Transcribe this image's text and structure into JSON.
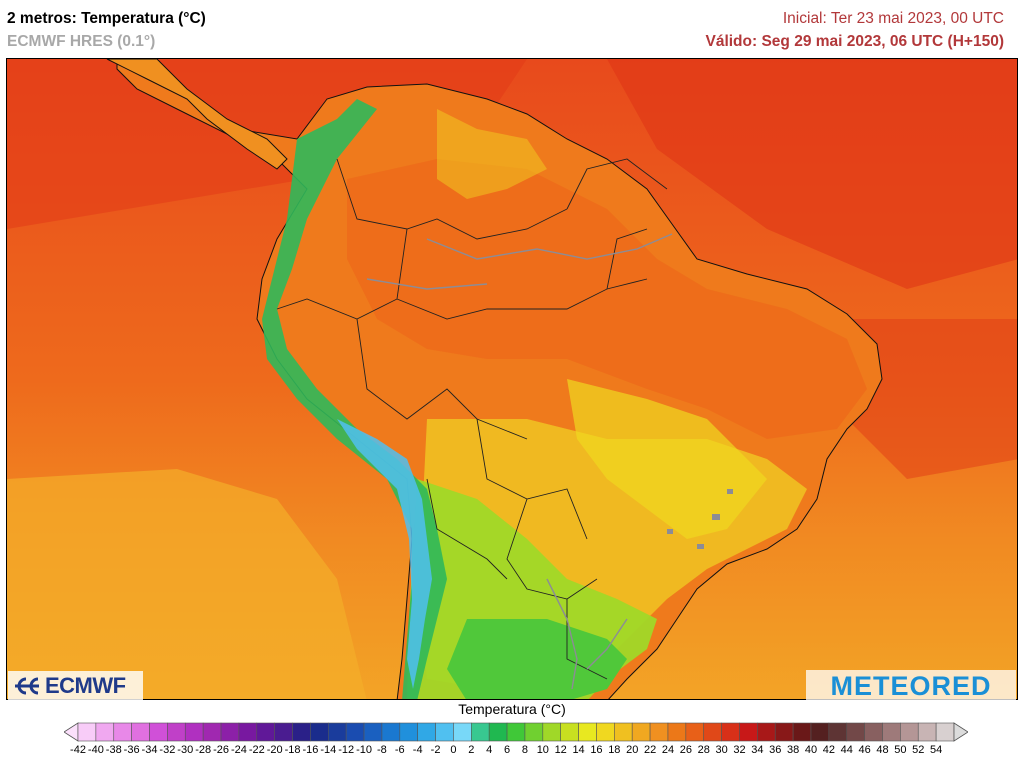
{
  "header": {
    "title": "2 metros: Temperatura (°C)",
    "subtitle": "ECMWF HRES (0.1°)",
    "initial": "Inicial: Ter 23 mai 2023, 00 UTC",
    "valid": "Válido: Seg 29 mai 2023, 06 UTC (H+150)"
  },
  "logos": {
    "ecmwf": "ECMWF",
    "meteored": "METEORED"
  },
  "colorbar": {
    "title": "Temperatura (°C)",
    "ticks": [
      -42,
      -40,
      -38,
      -36,
      -34,
      -32,
      -30,
      -28,
      -26,
      -24,
      -22,
      -20,
      -18,
      -16,
      -14,
      -12,
      -10,
      -8,
      -6,
      -4,
      -2,
      0,
      2,
      4,
      6,
      8,
      10,
      12,
      14,
      16,
      18,
      20,
      22,
      24,
      26,
      28,
      30,
      32,
      34,
      36,
      38,
      40,
      42,
      44,
      46,
      48,
      50,
      52,
      54
    ],
    "colors": [
      "#f8ccf8",
      "#f0a8f0",
      "#e888e8",
      "#e070e0",
      "#d050d8",
      "#c040c8",
      "#b030c0",
      "#a028b0",
      "#8c20a8",
      "#7818a0",
      "#601898",
      "#4a1c90",
      "#2a2088",
      "#1a2c8c",
      "#1a3c9c",
      "#1a4cb0",
      "#1a60c0",
      "#1a78d0",
      "#2090dc",
      "#30a8e6",
      "#50c0f0",
      "#78d8f8",
      "#38c890",
      "#20b850",
      "#40c838",
      "#70d030",
      "#a0d828",
      "#c8e020",
      "#e8e820",
      "#f0d820",
      "#f0c020",
      "#f0a820",
      "#f09020",
      "#ec7818",
      "#e86018",
      "#e04818",
      "#d83018",
      "#c81818",
      "#a81818",
      "#881818",
      "#6a1818",
      "#542020",
      "#5e3434",
      "#724848",
      "#886060",
      "#9e7a7a",
      "#b49696",
      "#c8b4b4",
      "#d8d0d0"
    ]
  }
}
